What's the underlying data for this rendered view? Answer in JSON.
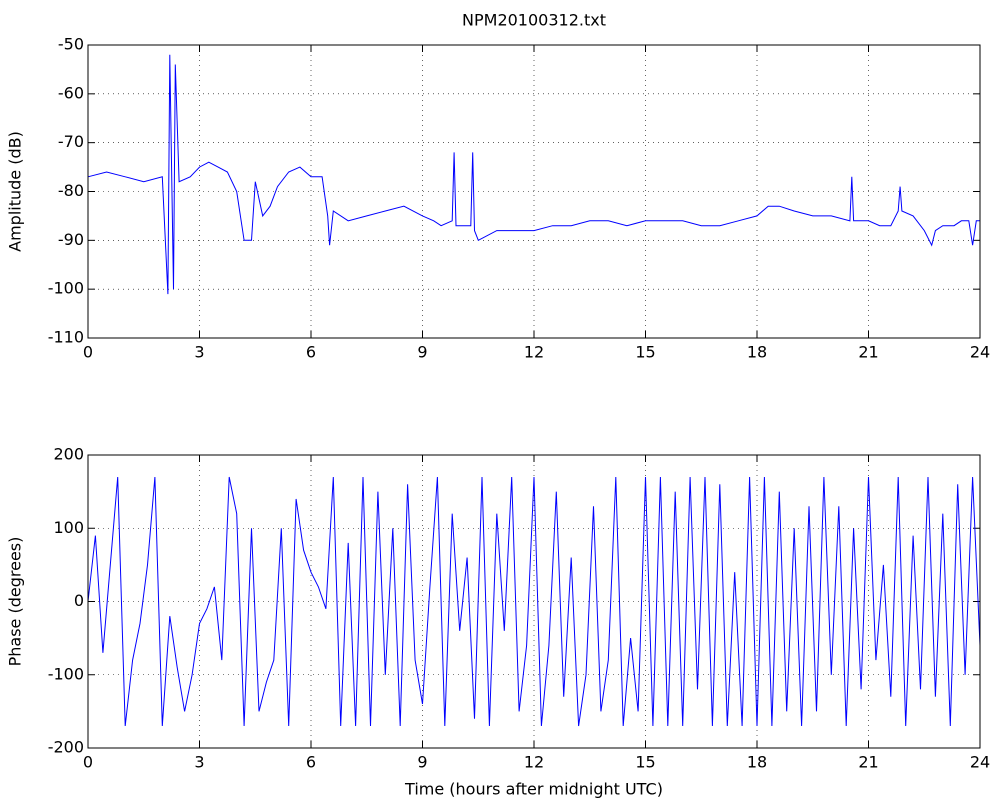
{
  "chart_data": [
    {
      "type": "line",
      "title": "NPM20100312.txt",
      "ylabel": "Amplitude (dB)",
      "color": "#0000ff",
      "grid": true,
      "xlim": [
        0,
        24
      ],
      "xticks": [
        0,
        3,
        6,
        9,
        12,
        15,
        18,
        21,
        24
      ],
      "ylim": [
        -110,
        -50
      ],
      "yticks": [
        -110,
        -100,
        -90,
        -80,
        -70,
        -60,
        -50
      ],
      "x": [
        0,
        0.5,
        1,
        1.5,
        2,
        2.15,
        2.2,
        2.3,
        2.35,
        2.45,
        2.75,
        3,
        3.25,
        3.5,
        3.75,
        4,
        4.1,
        4.2,
        4.4,
        4.5,
        4.7,
        4.9,
        5.1,
        5.4,
        5.7,
        6,
        6.3,
        6.45,
        6.5,
        6.6,
        7,
        7.5,
        8,
        8.5,
        9,
        9.3,
        9.5,
        9.8,
        9.85,
        9.9,
        10.3,
        10.35,
        10.4,
        10.5,
        11,
        11.5,
        12,
        12.5,
        13,
        13.5,
        14,
        14.5,
        15,
        15.5,
        16,
        16.5,
        17,
        17.5,
        18,
        18.3,
        18.6,
        19,
        19.5,
        20,
        20.5,
        20.55,
        20.6,
        21,
        21.3,
        21.6,
        21.8,
        21.85,
        21.9,
        22.2,
        22.5,
        22.7,
        22.8,
        23,
        23.3,
        23.5,
        23.7,
        23.8,
        23.9,
        24
      ],
      "values": [
        -77,
        -76,
        -77,
        -78,
        -77,
        -101,
        -52,
        -100,
        -54,
        -78,
        -77,
        -75,
        -74,
        -75,
        -76,
        -80,
        -85,
        -90,
        -90,
        -78,
        -85,
        -83,
        -79,
        -76,
        -75,
        -77,
        -77,
        -85,
        -91,
        -84,
        -86,
        -85,
        -84,
        -83,
        -85,
        -86,
        -87,
        -86,
        -72,
        -87,
        -87,
        -72,
        -88,
        -90,
        -88,
        -88,
        -88,
        -87,
        -87,
        -86,
        -86,
        -87,
        -86,
        -86,
        -86,
        -87,
        -87,
        -86,
        -85,
        -83,
        -83,
        -84,
        -85,
        -85,
        -86,
        -77,
        -86,
        -86,
        -87,
        -87,
        -84,
        -79,
        -84,
        -85,
        -88,
        -91,
        -88,
        -87,
        -87,
        -86,
        -86,
        -91,
        -86,
        -86
      ]
    },
    {
      "type": "line",
      "xlabel": "Time (hours after midnight UTC)",
      "ylabel": "Phase (degrees)",
      "color": "#0000ff",
      "grid": true,
      "xlim": [
        0,
        24
      ],
      "xticks": [
        0,
        3,
        6,
        9,
        12,
        15,
        18,
        21,
        24
      ],
      "ylim": [
        -200,
        200
      ],
      "yticks": [
        -200,
        -100,
        0,
        100,
        200
      ],
      "x": [
        0,
        0.2,
        0.4,
        0.6,
        0.8,
        1,
        1.2,
        1.4,
        1.6,
        1.8,
        2,
        2.2,
        2.4,
        2.6,
        2.8,
        3,
        3.2,
        3.4,
        3.6,
        3.8,
        4,
        4.2,
        4.4,
        4.6,
        4.8,
        5,
        5.2,
        5.4,
        5.6,
        5.8,
        6,
        6.2,
        6.4,
        6.6,
        6.8,
        7,
        7.2,
        7.4,
        7.6,
        7.8,
        8,
        8.2,
        8.4,
        8.6,
        8.8,
        9,
        9.2,
        9.4,
        9.6,
        9.8,
        10,
        10.2,
        10.4,
        10.6,
        10.8,
        11,
        11.2,
        11.4,
        11.6,
        11.8,
        12,
        12.2,
        12.4,
        12.6,
        12.8,
        13,
        13.2,
        13.4,
        13.6,
        13.8,
        14,
        14.2,
        14.4,
        14.6,
        14.8,
        15,
        15.2,
        15.4,
        15.6,
        15.8,
        16,
        16.2,
        16.4,
        16.6,
        16.8,
        17,
        17.2,
        17.4,
        17.6,
        17.8,
        18,
        18.2,
        18.4,
        18.6,
        18.8,
        19,
        19.2,
        19.4,
        19.6,
        19.8,
        20,
        20.2,
        20.4,
        20.6,
        20.8,
        21,
        21.2,
        21.4,
        21.6,
        21.8,
        22,
        22.2,
        22.4,
        22.6,
        22.8,
        23,
        23.2,
        23.4,
        23.6,
        23.8,
        24
      ],
      "values": [
        0,
        90,
        -70,
        50,
        170,
        -170,
        -80,
        -30,
        50,
        170,
        -170,
        -20,
        -90,
        -150,
        -100,
        -30,
        -10,
        20,
        -80,
        170,
        120,
        -170,
        100,
        -150,
        -110,
        -80,
        100,
        -170,
        140,
        70,
        40,
        20,
        -10,
        170,
        -170,
        80,
        -170,
        170,
        -170,
        150,
        -100,
        100,
        -170,
        160,
        -80,
        -140,
        20,
        170,
        -170,
        120,
        -40,
        60,
        -160,
        170,
        -170,
        120,
        -40,
        170,
        -150,
        -60,
        170,
        -170,
        -60,
        150,
        -130,
        60,
        -170,
        -100,
        130,
        -150,
        -80,
        170,
        -170,
        -50,
        -150,
        170,
        -170,
        170,
        -170,
        150,
        -170,
        170,
        -120,
        170,
        -170,
        160,
        -170,
        40,
        -170,
        170,
        -170,
        170,
        -170,
        150,
        -150,
        100,
        -170,
        130,
        -150,
        170,
        -100,
        130,
        -170,
        100,
        -120,
        170,
        -80,
        50,
        -130,
        170,
        -170,
        90,
        -120,
        170,
        -130,
        120,
        -170,
        160,
        -100,
        170,
        -60
      ]
    }
  ]
}
